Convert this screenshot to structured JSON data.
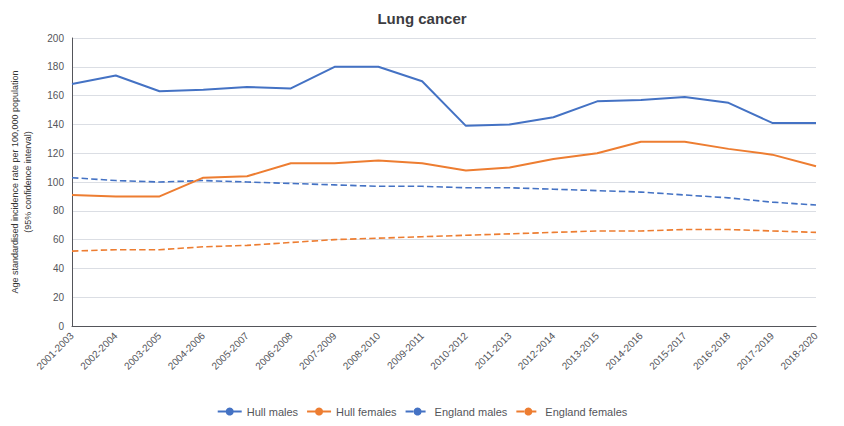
{
  "chart_data": {
    "type": "line",
    "title": "Lung cancer",
    "ylabel": "Age standardised incidence rate per 100,000 population\n(95% confidence interval)",
    "categories": [
      "2001-2003",
      "2002-2004",
      "2003-2005",
      "2004-2006",
      "2005-2007",
      "2006-2008",
      "2007-2009",
      "2008-2010",
      "2009-2011",
      "2010-2012",
      "2011-2013",
      "2012-2014",
      "2013-2015",
      "2014-2016",
      "2015-2017",
      "2016-2018",
      "2017-2019",
      "2018-2020"
    ],
    "series": [
      {
        "name": "Hull males",
        "color": "#4472C4",
        "line_style": "solid",
        "values": [
          168,
          174,
          163,
          164,
          166,
          165,
          180,
          180,
          170,
          139,
          140,
          145,
          156,
          157,
          159,
          155,
          141,
          141
        ]
      },
      {
        "name": "Hull females",
        "color": "#ED7D31",
        "line_style": "solid",
        "values": [
          91,
          90,
          90,
          103,
          104,
          113,
          113,
          115,
          113,
          108,
          110,
          116,
          120,
          128,
          128,
          123,
          119,
          111
        ]
      },
      {
        "name": "England males",
        "color": "#4472C4",
        "line_style": "dashed",
        "values": [
          103,
          101,
          100,
          101,
          100,
          99,
          98,
          97,
          97,
          96,
          96,
          95,
          94,
          93,
          91,
          89,
          86,
          84
        ]
      },
      {
        "name": "England females",
        "color": "#ED7D31",
        "line_style": "dashed",
        "values": [
          52,
          53,
          53,
          55,
          56,
          58,
          60,
          61,
          62,
          63,
          64,
          65,
          66,
          66,
          67,
          67,
          66,
          65
        ]
      }
    ],
    "ylim": [
      0,
      200
    ],
    "yticks": [
      0,
      20,
      40,
      60,
      80,
      100,
      120,
      140,
      160,
      180,
      200
    ],
    "grid": true,
    "legend": "bottom"
  }
}
